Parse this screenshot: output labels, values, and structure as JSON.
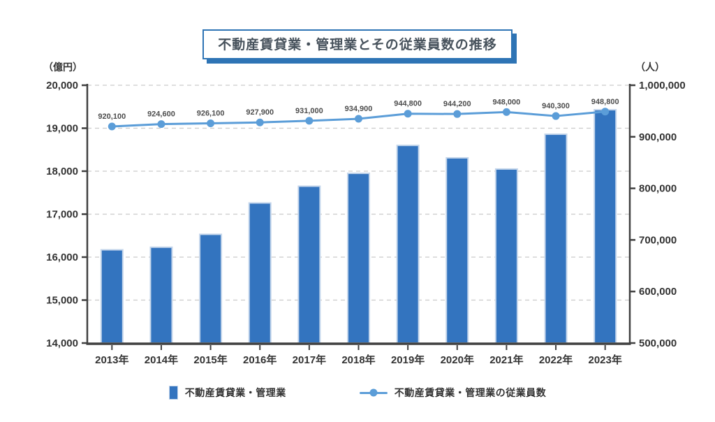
{
  "title": "不動産賃貸業・管理業とその従業員数の推移",
  "colors": {
    "bar_fill": "#3374BF",
    "bar_edge": "#C3D5EB",
    "line": "#5B9DD8",
    "axis": "#404040",
    "grid": "#CBCBCB",
    "tick_text": "#333333",
    "point_label_text": "#4D4D4D",
    "title_accent": "#2E74B5"
  },
  "chart_data": {
    "type": "bar",
    "subtype": "combo-bar-line-dual-axis",
    "title": "不動産賃貸業・管理業とその従業員数の推移",
    "categories": [
      "2013年",
      "2014年",
      "2015年",
      "2016年",
      "2017年",
      "2018年",
      "2019年",
      "2020年",
      "2021年",
      "2022年",
      "2023年"
    ],
    "series": [
      {
        "name": "不動産賃貸業・管理業",
        "type": "bar",
        "axis": "left",
        "color": "#3374BF",
        "values": [
          16170,
          16230,
          16530,
          17260,
          17650,
          17950,
          18600,
          18310,
          18050,
          18860,
          19430
        ]
      },
      {
        "name": "不動産賃貸業・管理業の従業員数",
        "type": "line",
        "axis": "right",
        "color": "#5B9DD8",
        "values": [
          920100,
          924600,
          926100,
          927900,
          931000,
          934900,
          944800,
          944200,
          948000,
          940300,
          948800
        ],
        "point_labels": [
          "920,100",
          "924,600",
          "926,100",
          "927,900",
          "931,000",
          "934,900",
          "944,800",
          "944,200",
          "948,000",
          "940,300",
          "948,800"
        ]
      }
    ],
    "left_axis": {
      "unit": "（億円）",
      "min": 14000,
      "max": 20000,
      "tick_values": [
        20000,
        19000,
        18000,
        17000,
        16000,
        15000,
        14000
      ],
      "tick_labels": [
        "20,000",
        "19,000",
        "18,000",
        "17,000",
        "16,000",
        "15,000",
        "14,000"
      ]
    },
    "right_axis": {
      "unit": "（人）",
      "min": 500000,
      "max": 1000000,
      "tick_values": [
        1000000,
        900000,
        800000,
        700000,
        600000,
        500000
      ],
      "tick_labels": [
        "1,000,000",
        "900,000",
        "800,000",
        "700,000",
        "600,000",
        "500,000"
      ]
    },
    "grid": "horizontal-dashed",
    "legend_position": "bottom"
  },
  "legend": {
    "bar_label": "不動産賃貸業・管理業",
    "line_label": "不動産賃貸業・管理業の従業員数"
  }
}
